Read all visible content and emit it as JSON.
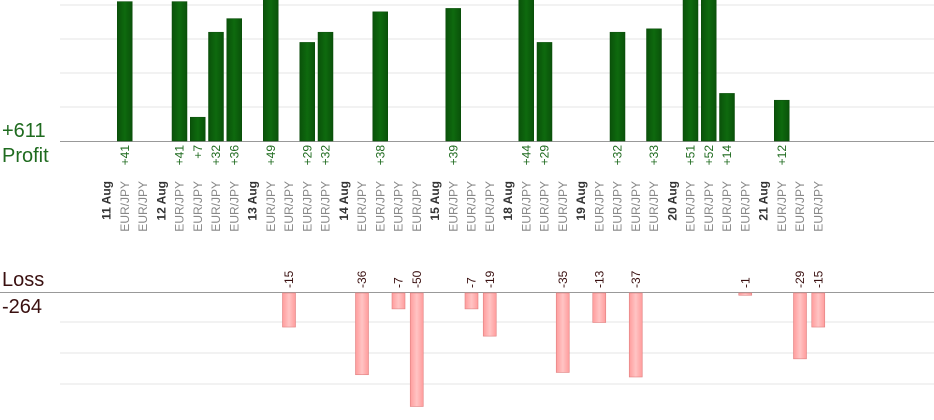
{
  "summary": {
    "profit_total": "+611",
    "profit_label": "Profit",
    "loss_label": "Loss",
    "loss_total": "-264"
  },
  "colors": {
    "profit_bar": "#0b5c0b",
    "profit_text": "#1f6b1f",
    "loss_bar": "#ffb0b0",
    "loss_bar_edge": "#e08080",
    "loss_text": "#3a1010",
    "date_text": "#333333",
    "symbol_text": "#888888",
    "grid": "#e6e6e6",
    "axis": "#999999"
  },
  "chart_data": {
    "type": "bar",
    "symbol": "EUR/JPY",
    "columns": [
      {
        "date": "11 Aug"
      },
      {
        "symbol": "EUR/JPY",
        "profit": 41
      },
      {
        "symbol": "EUR/JPY"
      },
      {
        "date": "12 Aug"
      },
      {
        "symbol": "EUR/JPY",
        "profit": 41
      },
      {
        "symbol": "EUR/JPY",
        "profit": 7
      },
      {
        "symbol": "EUR/JPY",
        "profit": 32
      },
      {
        "symbol": "EUR/JPY",
        "profit": 36
      },
      {
        "date": "13 Aug"
      },
      {
        "symbol": "EUR/JPY",
        "profit": 49
      },
      {
        "symbol": "EUR/JPY",
        "loss": -15
      },
      {
        "symbol": "EUR/JPY",
        "profit": 29
      },
      {
        "symbol": "EUR/JPY",
        "profit": 32
      },
      {
        "date": "14 Aug"
      },
      {
        "symbol": "EUR/JPY",
        "loss": -36
      },
      {
        "symbol": "EUR/JPY",
        "profit": 38
      },
      {
        "symbol": "EUR/JPY",
        "loss": -7
      },
      {
        "symbol": "EUR/JPY",
        "loss": -50
      },
      {
        "date": "15 Aug"
      },
      {
        "symbol": "EUR/JPY",
        "profit": 39
      },
      {
        "symbol": "EUR/JPY",
        "loss": -7
      },
      {
        "symbol": "EUR/JPY",
        "loss": -19
      },
      {
        "date": "18 Aug"
      },
      {
        "symbol": "EUR/JPY",
        "profit": 44
      },
      {
        "symbol": "EUR/JPY",
        "profit": 29
      },
      {
        "symbol": "EUR/JPY",
        "loss": -35
      },
      {
        "date": "19 Aug"
      },
      {
        "symbol": "EUR/JPY",
        "loss": -13
      },
      {
        "symbol": "EUR/JPY",
        "profit": 32
      },
      {
        "symbol": "EUR/JPY",
        "loss": -37
      },
      {
        "symbol": "EUR/JPY",
        "profit": 33
      },
      {
        "date": "20 Aug"
      },
      {
        "symbol": "EUR/JPY",
        "profit": 51
      },
      {
        "symbol": "EUR/JPY",
        "profit": 52
      },
      {
        "symbol": "EUR/JPY",
        "profit": 14
      },
      {
        "symbol": "EUR/JPY",
        "loss": -1
      },
      {
        "date": "21 Aug"
      },
      {
        "symbol": "EUR/JPY",
        "profit": 12
      },
      {
        "symbol": "EUR/JPY",
        "loss": -29
      },
      {
        "symbol": "EUR/JPY",
        "loss": -15
      }
    ]
  }
}
